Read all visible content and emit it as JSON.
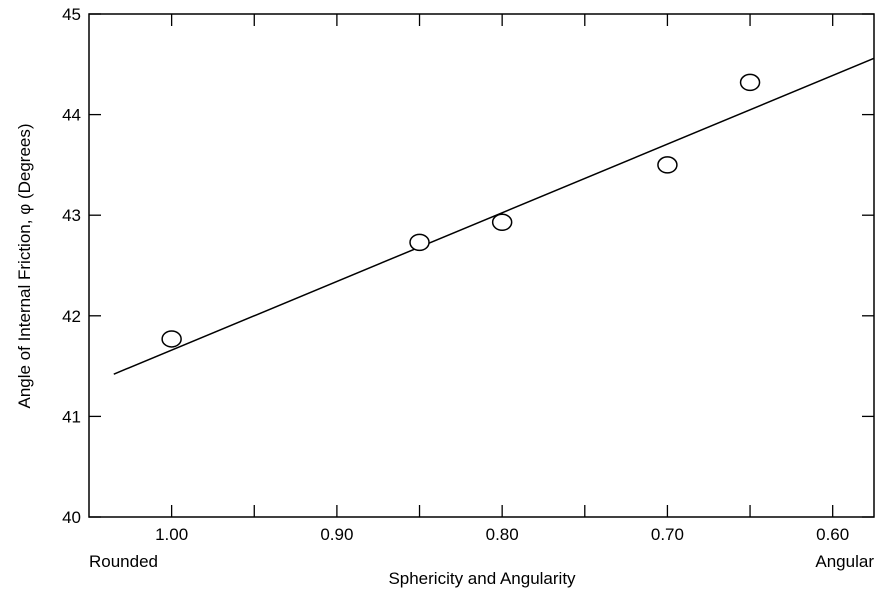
{
  "chart_data": {
    "type": "scatter",
    "title": "",
    "xlabel": "Sphericity and Angularity",
    "ylabel": "Angle of Internal Friction, φ (Degrees)",
    "x_reversed": true,
    "xlim": [
      1.05,
      0.575
    ],
    "ylim": [
      40,
      45
    ],
    "x_ticks": [
      1.0,
      0.95,
      0.9,
      0.85,
      0.8,
      0.75,
      0.7,
      0.65,
      0.6
    ],
    "x_tick_labels": [
      "1.00",
      "",
      "0.90",
      "",
      "0.80",
      "",
      "0.70",
      "",
      "0.60"
    ],
    "y_ticks": [
      40,
      41,
      42,
      43,
      44,
      45
    ],
    "y_tick_labels": [
      "40",
      "41",
      "42",
      "43",
      "44",
      "45"
    ],
    "x_end_labels": {
      "left": "Rounded",
      "right": "Angular"
    },
    "points": [
      {
        "x": 1.0,
        "y": 41.77
      },
      {
        "x": 0.85,
        "y": 42.73
      },
      {
        "x": 0.8,
        "y": 42.93
      },
      {
        "x": 0.7,
        "y": 43.5
      },
      {
        "x": 0.65,
        "y": 44.32
      }
    ],
    "fit_line": {
      "x": [
        1.035,
        0.575
      ],
      "y": [
        41.42,
        44.56
      ]
    },
    "marker": "open-circle",
    "grid": false
  }
}
